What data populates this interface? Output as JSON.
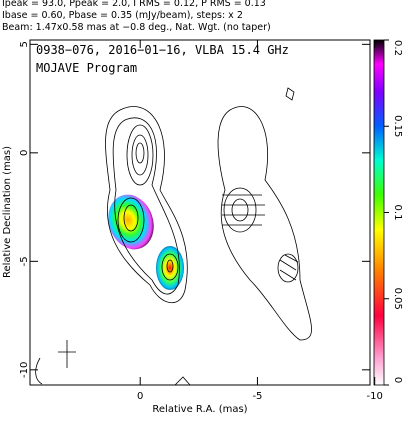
{
  "chart_data": {
    "type": "image",
    "header_lines": [
      "Ipeak = 93.0, Ppeak = 2.0, I RMS = 0.12, P RMS = 0.13",
      "Ibase = 0.60, Pbase = 0.35 (mJy/beam), steps: x 2",
      "Beam: 1.47x0.58 mas at −0.8 deg., Nat. Wgt. (no taper)"
    ],
    "annotations": [
      "0938−076, 2016−01−16, VLBA 15.4 GHz",
      "MOJAVE Program"
    ],
    "xlabel": "Relative R.A. (mas)",
    "ylabel": "Relative Declination (mas)",
    "xlim": [
      4.7,
      -9.8
    ],
    "xticks": [
      0,
      -5,
      -10
    ],
    "ylim": [
      -10.7,
      5.2
    ],
    "yticks": [
      5,
      0,
      -5,
      -10
    ],
    "colorbar": {
      "lim": [
        0,
        0.2
      ],
      "ticks": [
        0,
        0.05,
        0.1,
        0.15,
        0.2
      ]
    }
  }
}
